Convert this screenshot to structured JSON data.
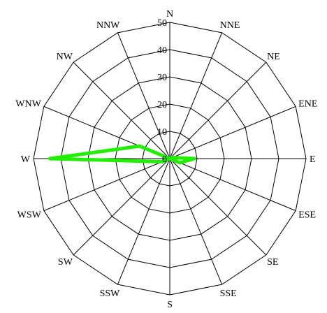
{
  "chart_data": {
    "type": "radar",
    "directions": [
      "N",
      "NNE",
      "NE",
      "ENE",
      "E",
      "ESE",
      "SE",
      "SSE",
      "S",
      "SSW",
      "SW",
      "WSW",
      "W",
      "WNW",
      "NW",
      "NNW"
    ],
    "radial_ticks": [
      "0",
      "10",
      "20",
      "30",
      "40",
      "50"
    ],
    "rmax": 50,
    "grid": true,
    "series": [
      {
        "color": "#22ee00",
        "values": [
          0,
          0,
          0,
          1,
          9,
          4,
          0,
          0,
          0,
          0,
          0,
          3,
          44,
          12,
          0,
          0
        ]
      }
    ]
  }
}
